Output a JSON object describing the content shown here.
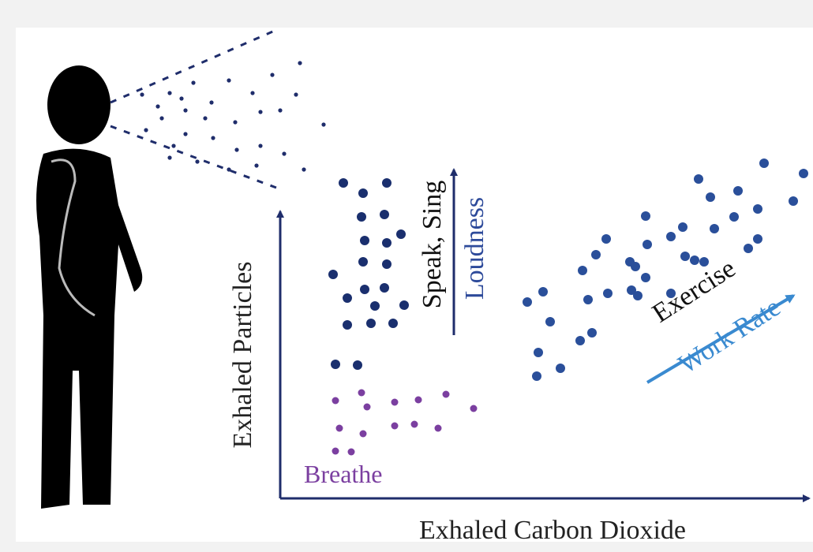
{
  "axes": {
    "y_label": "Exhaled Particles",
    "x_label": "Exhaled Carbon Dioxide"
  },
  "groups": [
    {
      "label": "Breathe"
    },
    {
      "label": "Speak, Sing",
      "arrow_label": "Loudness"
    },
    {
      "label": "Exercise",
      "arrow_label": "Work Rate"
    }
  ]
}
